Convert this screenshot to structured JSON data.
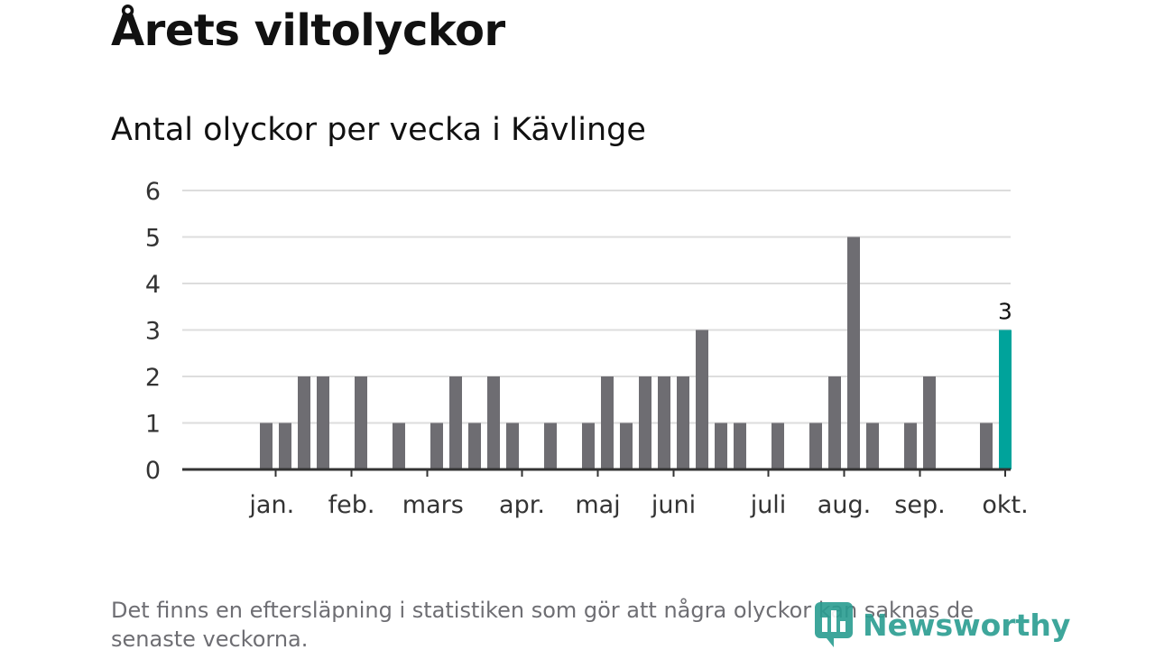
{
  "title": "Årets viltolyckor",
  "subtitle": "Antal olyckor per vecka i Kävlinge",
  "footnote": "Det finns en eftersläpning i statistiken som gör att några olyckor kan saknas de senaste veckorna.",
  "brand": "Newsworthy",
  "colors": {
    "bar": "#6e6d72",
    "highlight": "#00a39b",
    "grid": "#dddddd",
    "axis": "#333333",
    "brand": "#2a9d91"
  },
  "chart_data": {
    "type": "bar",
    "ylim": [
      0,
      6
    ],
    "yticks": [
      "0",
      "1",
      "2",
      "3",
      "4",
      "5",
      "6"
    ],
    "grid": true,
    "values": [
      0,
      0,
      1,
      1,
      2,
      2,
      0,
      2,
      0,
      1,
      0,
      1,
      2,
      1,
      2,
      1,
      0,
      1,
      0,
      1,
      2,
      1,
      2,
      2,
      2,
      3,
      1,
      1,
      0,
      1,
      0,
      1,
      2,
      5,
      1,
      0,
      1,
      2,
      0,
      0,
      1,
      3
    ],
    "highlight_index": 41,
    "highlight_label": "3",
    "month_labels": [
      {
        "label": "jan.",
        "week": 2.3
      },
      {
        "label": "feb.",
        "week": 6.5
      },
      {
        "label": "mars",
        "week": 10.8
      },
      {
        "label": "apr.",
        "week": 15.5
      },
      {
        "label": "maj",
        "week": 19.5
      },
      {
        "label": "juni",
        "week": 23.5
      },
      {
        "label": "juli",
        "week": 28.5
      },
      {
        "label": "aug.",
        "week": 32.5
      },
      {
        "label": "sep.",
        "week": 36.5
      },
      {
        "label": "okt.",
        "week": 41
      }
    ],
    "month_ticks": [
      2.5,
      6.5,
      10.5,
      15.5,
      19.5,
      23.5,
      28.5,
      32.5,
      36.5,
      41
    ]
  }
}
